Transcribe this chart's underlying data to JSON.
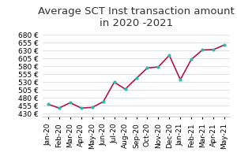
{
  "title": "Average SCT Inst transaction amount\nin 2020 -2021",
  "categories": [
    "Jan-20",
    "Feb-20",
    "Mar-20",
    "Apr-20",
    "May-20",
    "Jun-20",
    "Jul-20",
    "Aug-20",
    "Sep-20",
    "Oct-20",
    "Nov-20",
    "Dec-20",
    "Jan-21",
    "Feb-21",
    "Mar-21",
    "Apr-21",
    "May-21"
  ],
  "values": [
    460,
    448,
    465,
    448,
    450,
    468,
    530,
    508,
    542,
    575,
    578,
    615,
    538,
    602,
    632,
    633,
    648
  ],
  "line_color": "#b5144b",
  "marker_color": "#2abcb4",
  "marker_style": "o",
  "marker_size": 3,
  "line_width": 1.2,
  "yticks": [
    430,
    455,
    480,
    505,
    530,
    555,
    580,
    605,
    630,
    655,
    680
  ],
  "ylim": [
    420,
    695
  ],
  "ylabel_format": "{} €",
  "background_color": "#ffffff",
  "grid_color": "#dddddd",
  "title_fontsize": 9.5,
  "tick_fontsize": 6.5
}
